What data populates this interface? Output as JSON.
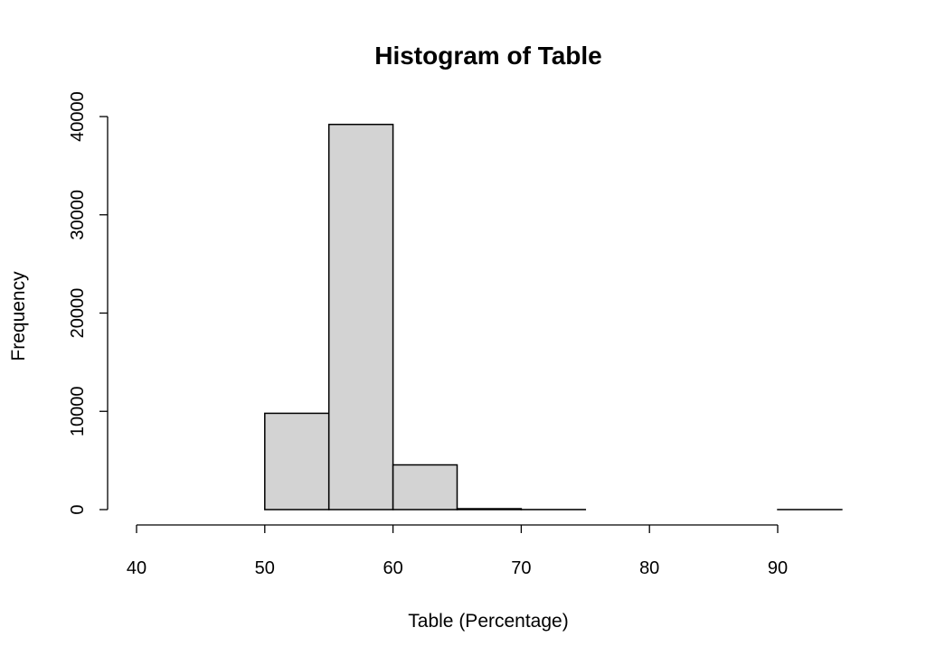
{
  "chart_data": {
    "type": "bar",
    "title": "Histogram of Table",
    "xlabel": "Table (Percentage)",
    "ylabel": "Frequency",
    "bins": [
      {
        "from": 40,
        "to": 45,
        "value": 0
      },
      {
        "from": 45,
        "to": 50,
        "value": 0
      },
      {
        "from": 50,
        "to": 55,
        "value": 9800
      },
      {
        "from": 55,
        "to": 60,
        "value": 39200
      },
      {
        "from": 60,
        "to": 65,
        "value": 4550
      },
      {
        "from": 65,
        "to": 70,
        "value": 90
      },
      {
        "from": 70,
        "to": 75,
        "value": 5
      },
      {
        "from": 75,
        "to": 80,
        "value": 0
      },
      {
        "from": 80,
        "to": 85,
        "value": 0
      },
      {
        "from": 85,
        "to": 90,
        "value": 0
      },
      {
        "from": 90,
        "to": 95,
        "value": 1
      }
    ],
    "xticks": [
      40,
      50,
      60,
      70,
      80,
      90
    ],
    "yticks": [
      0,
      10000,
      20000,
      30000,
      40000
    ],
    "xlim": [
      40,
      95
    ],
    "ylim": [
      0,
      40000
    ],
    "grid": false,
    "bar_color": "#d3d3d3",
    "edge_color": "#000000"
  }
}
